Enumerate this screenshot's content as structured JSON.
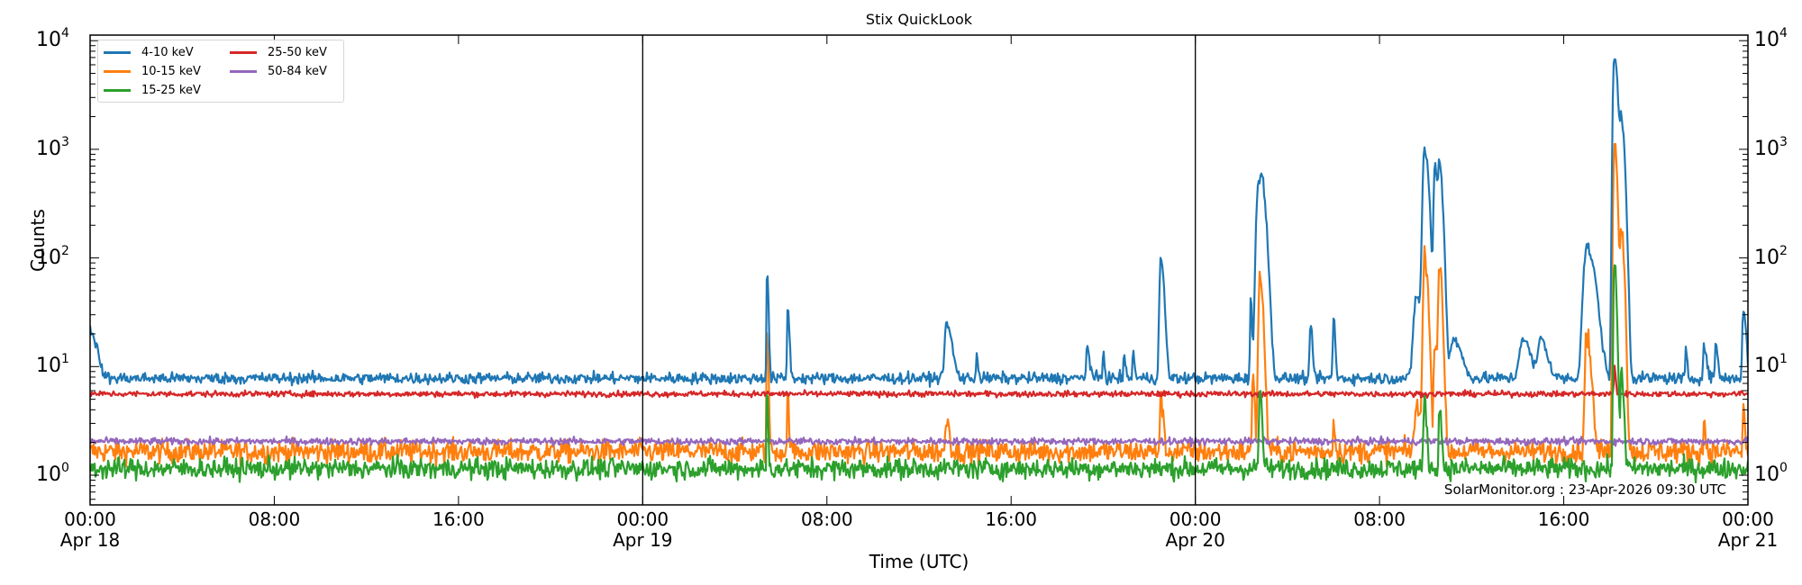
{
  "chart_data": {
    "type": "line",
    "title": "Stix QuickLook",
    "xlabel": "Time (UTC)",
    "ylabel": "Counts",
    "yscale": "log",
    "ylim": [
      0.45,
      11000
    ],
    "xlim_hours": [
      0,
      72
    ],
    "grid": false,
    "legend_position": "upper left",
    "yticks": [
      1,
      10,
      100,
      1000,
      10000
    ],
    "ytick_labels": [
      "10^0",
      "10^1",
      "10^2",
      "10^3",
      "10^4"
    ],
    "xticks": [
      {
        "hour": 0,
        "time": "00:00",
        "date": "Apr 18"
      },
      {
        "hour": 8,
        "time": "08:00",
        "date": ""
      },
      {
        "hour": 16,
        "time": "16:00",
        "date": ""
      },
      {
        "hour": 24,
        "time": "00:00",
        "date": "Apr 19"
      },
      {
        "hour": 32,
        "time": "08:00",
        "date": ""
      },
      {
        "hour": 40,
        "time": "16:00",
        "date": ""
      },
      {
        "hour": 48,
        "time": "00:00",
        "date": "Apr 20"
      },
      {
        "hour": 56,
        "time": "08:00",
        "date": ""
      },
      {
        "hour": 64,
        "time": "16:00",
        "date": ""
      },
      {
        "hour": 72,
        "time": "00:00",
        "date": "Apr 21"
      }
    ],
    "day_dividers_hours": [
      24,
      48
    ],
    "annotation": "SolarMonitor.org : 23-Apr-2026 09:30 UTC",
    "series": [
      {
        "name": "4-10 keV",
        "color": "#1f77b4",
        "baseline": 7.8,
        "noise": 0.05,
        "events": [
          [
            0.0,
            22,
            0.25
          ],
          [
            29.4,
            78,
            0.05
          ],
          [
            30.3,
            36,
            0.06
          ],
          [
            37.2,
            24,
            0.2
          ],
          [
            38.5,
            14,
            0.05
          ],
          [
            43.3,
            15,
            0.1
          ],
          [
            44.0,
            14,
            0.05
          ],
          [
            44.9,
            14,
            0.05
          ],
          [
            45.3,
            15,
            0.05
          ],
          [
            46.5,
            95,
            0.12
          ],
          [
            50.4,
            45,
            0.05
          ],
          [
            50.75,
            500,
            0.2
          ],
          [
            50.9,
            220,
            0.15
          ],
          [
            53.0,
            22,
            0.08
          ],
          [
            54.0,
            30,
            0.06
          ],
          [
            57.6,
            45,
            0.25
          ],
          [
            57.95,
            1000,
            0.15
          ],
          [
            58.4,
            720,
            0.1
          ],
          [
            58.6,
            700,
            0.12
          ],
          [
            59.2,
            18,
            0.3
          ],
          [
            62.2,
            18,
            0.3
          ],
          [
            63.0,
            18,
            0.25
          ],
          [
            65.0,
            125,
            0.3
          ],
          [
            66.2,
            7200,
            0.12
          ],
          [
            66.5,
            1800,
            0.12
          ],
          [
            69.3,
            14,
            0.05
          ],
          [
            70.1,
            15,
            0.1
          ],
          [
            70.6,
            16,
            0.08
          ],
          [
            71.8,
            32,
            0.1
          ]
        ]
      },
      {
        "name": "10-15 keV",
        "color": "#ff7f0e",
        "baseline": 1.65,
        "noise": 0.1,
        "events": [
          [
            29.4,
            20,
            0.05
          ],
          [
            30.3,
            5.5,
            0.05
          ],
          [
            37.2,
            3.5,
            0.1
          ],
          [
            46.5,
            5.5,
            0.08
          ],
          [
            50.5,
            10,
            0.06
          ],
          [
            50.8,
            65,
            0.12
          ],
          [
            54.0,
            4,
            0.04
          ],
          [
            57.6,
            4,
            0.2
          ],
          [
            57.95,
            110,
            0.12
          ],
          [
            58.4,
            20,
            0.08
          ],
          [
            58.6,
            95,
            0.1
          ],
          [
            65.0,
            20,
            0.15
          ],
          [
            66.2,
            1100,
            0.1
          ],
          [
            66.5,
            200,
            0.1
          ],
          [
            70.1,
            3.5,
            0.05
          ],
          [
            71.8,
            4.5,
            0.05
          ]
        ]
      },
      {
        "name": "15-25 keV",
        "color": "#2ca02c",
        "baseline": 1.15,
        "noise": 0.09,
        "events": [
          [
            29.4,
            6,
            0.04
          ],
          [
            50.8,
            6,
            0.08
          ],
          [
            57.95,
            5,
            0.08
          ],
          [
            58.6,
            4,
            0.08
          ],
          [
            66.2,
            85,
            0.08
          ],
          [
            66.5,
            10,
            0.08
          ]
        ]
      },
      {
        "name": "25-50 keV",
        "color": "#d62728",
        "baseline": 5.6,
        "noise": 0.025,
        "events": [
          [
            66.2,
            10,
            0.05
          ]
        ]
      },
      {
        "name": "50-84 keV",
        "color": "#9467bd",
        "baseline": 2.05,
        "noise": 0.03,
        "events": []
      }
    ]
  },
  "legend": {
    "items": [
      {
        "label": "4-10 keV",
        "color": "#1f77b4"
      },
      {
        "label": "25-50 keV",
        "color": "#d62728"
      },
      {
        "label": "10-15 keV",
        "color": "#ff7f0e"
      },
      {
        "label": "50-84 keV",
        "color": "#9467bd"
      },
      {
        "label": "15-25 keV",
        "color": "#2ca02c"
      }
    ]
  }
}
